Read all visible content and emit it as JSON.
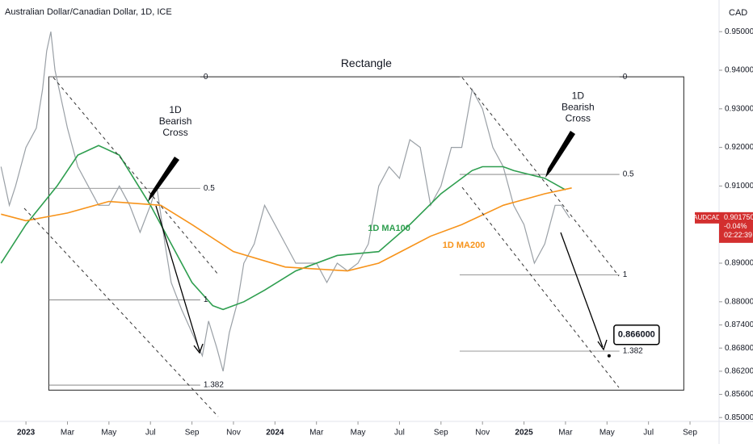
{
  "chart_data": {
    "type": "line",
    "title": "Australian Dollar/Canadian Dollar, 1D, ICE",
    "currency": "CAD",
    "symbol": "AUDCAD",
    "last_price": {
      "value": 0.90175,
      "label": "0.901750"
    },
    "change": "-0.04%",
    "countdown": "02:22:39",
    "xlim": [
      -1.25,
      33.4
    ],
    "ylim": [
      0.849,
      0.9582
    ],
    "xticks": [
      {
        "value": 0,
        "label": "2023"
      },
      {
        "value": 2,
        "label": "Mar"
      },
      {
        "value": 4,
        "label": "May"
      },
      {
        "value": 6,
        "label": "Jul"
      },
      {
        "value": 8,
        "label": "Sep"
      },
      {
        "value": 10,
        "label": "Nov"
      },
      {
        "value": 12,
        "label": "2024"
      },
      {
        "value": 14,
        "label": "Mar"
      },
      {
        "value": 16,
        "label": "May"
      },
      {
        "value": 18,
        "label": "Jul"
      },
      {
        "value": 20,
        "label": "Sep"
      },
      {
        "value": 22,
        "label": "Nov"
      },
      {
        "value": 24,
        "label": "2025"
      },
      {
        "value": 26,
        "label": "Mar"
      },
      {
        "value": 28,
        "label": "May"
      },
      {
        "value": 30,
        "label": "Jul"
      },
      {
        "value": 32,
        "label": "Sep"
      }
    ],
    "yticks": [
      {
        "value": 0.95,
        "label": "0.950000"
      },
      {
        "value": 0.94,
        "label": "0.940000"
      },
      {
        "value": 0.93,
        "label": "0.930000"
      },
      {
        "value": 0.92,
        "label": "0.920000"
      },
      {
        "value": 0.91,
        "label": "0.910000"
      },
      {
        "value": 0.89,
        "label": "0.890000"
      },
      {
        "value": 0.88,
        "label": "0.880000"
      },
      {
        "value": 0.874,
        "label": "0.874000"
      },
      {
        "value": 0.868,
        "label": "0.868000"
      },
      {
        "value": 0.862,
        "label": "0.862000"
      },
      {
        "value": 0.856,
        "label": "0.856000"
      },
      {
        "value": 0.85,
        "label": "0.850000"
      }
    ],
    "x": [
      -1.2,
      -0.8,
      -0.5,
      0,
      0.5,
      0.8,
      1.0,
      1.2,
      1.4,
      1.6,
      2,
      2.5,
      3,
      3.5,
      4,
      4.5,
      5,
      5.5,
      6,
      6.3,
      6.7,
      7,
      7.5,
      8,
      8.5,
      8.8,
      9.2,
      9.5,
      9.8,
      10.2,
      10.5,
      11,
      11.5,
      12,
      12.5,
      13,
      13.5,
      14,
      14.5,
      15,
      15.5,
      16,
      16.5,
      17,
      17.5,
      18,
      18.5,
      19,
      19.5,
      20,
      20.5,
      21,
      21.5,
      22,
      22.5,
      23,
      23.5,
      24,
      24.5,
      25,
      25.5,
      25.8,
      26.2
    ],
    "series": [
      {
        "name": "AUDCAD",
        "color": "#9aa0a6",
        "values": [
          0.915,
          0.905,
          0.91,
          0.92,
          0.925,
          0.935,
          0.945,
          0.95,
          0.94,
          0.935,
          0.925,
          0.915,
          0.91,
          0.905,
          0.905,
          0.91,
          0.905,
          0.898,
          0.905,
          0.91,
          0.895,
          0.885,
          0.878,
          0.872,
          0.866,
          0.875,
          0.868,
          0.862,
          0.872,
          0.88,
          0.89,
          0.895,
          0.905,
          0.9,
          0.895,
          0.89,
          0.89,
          0.89,
          0.885,
          0.89,
          0.888,
          0.89,
          0.895,
          0.91,
          0.915,
          0.912,
          0.922,
          0.92,
          0.905,
          0.91,
          0.92,
          0.92,
          0.935,
          0.93,
          0.92,
          0.915,
          0.905,
          0.9,
          0.89,
          0.895,
          0.905,
          0.905,
          0.9017
        ]
      },
      {
        "name": "1D MA100",
        "color": "#2e9e4f",
        "x": [
          -1.2,
          0,
          1.5,
          2.5,
          3.5,
          4.5,
          6,
          7,
          8,
          9,
          9.5,
          10.5,
          11.5,
          13,
          15,
          17,
          18.5,
          20,
          20.5,
          21.5,
          22,
          23,
          23.5,
          25,
          26
        ],
        "values": [
          0.89,
          0.9,
          0.91,
          0.918,
          0.9205,
          0.918,
          0.905,
          0.895,
          0.885,
          0.879,
          0.878,
          0.88,
          0.883,
          0.888,
          0.892,
          0.893,
          0.9,
          0.908,
          0.91,
          0.914,
          0.915,
          0.915,
          0.914,
          0.912,
          0.909
        ]
      },
      {
        "name": "1D MA200",
        "color": "#f7931a",
        "x": [
          -1.2,
          0,
          2,
          4,
          6.5,
          8,
          10,
          12.5,
          15.5,
          17,
          19.5,
          21,
          23,
          25,
          26.3
        ],
        "values": [
          0.9027,
          0.901,
          0.903,
          0.906,
          0.905,
          0.9,
          0.893,
          0.889,
          0.888,
          0.89,
          0.897,
          0.9,
          0.905,
          0.908,
          0.9095
        ]
      }
    ],
    "rectangle": {
      "label": "Rectangle",
      "x": [
        1.1,
        31.7
      ],
      "price": [
        0.9383,
        0.8571
      ]
    },
    "fib_left": {
      "x": [
        1.1,
        8.4
      ],
      "levels": [
        {
          "label": "0",
          "price": 0.9383
        },
        {
          "label": "0.5",
          "price": 0.9094
        },
        {
          "label": "1",
          "price": 0.8805
        },
        {
          "label": "1.382",
          "price": 0.8584
        }
      ]
    },
    "fib_right": {
      "x": [
        20.9,
        28.6
      ],
      "levels": [
        {
          "label": "0",
          "price": 0.9383
        },
        {
          "label": "0.5",
          "price": 0.913
        },
        {
          "label": "1",
          "price": 0.887
        },
        {
          "label": "1.382",
          "price": 0.8672
        }
      ]
    },
    "target": {
      "x": 28.1,
      "value": 0.866,
      "label": "0.866000"
    },
    "annotations": [
      {
        "text": "1D\nBearish\nCross",
        "x": 7.2,
        "price": 0.9295
      },
      {
        "text": "1D\nBearish\nCross",
        "x": 26.6,
        "price": 0.9332
      },
      {
        "text": "1D MA100",
        "x": 17.5,
        "price": 0.899
      },
      {
        "text": "1D MA200",
        "x": 21.1,
        "price": 0.8946
      }
    ]
  }
}
